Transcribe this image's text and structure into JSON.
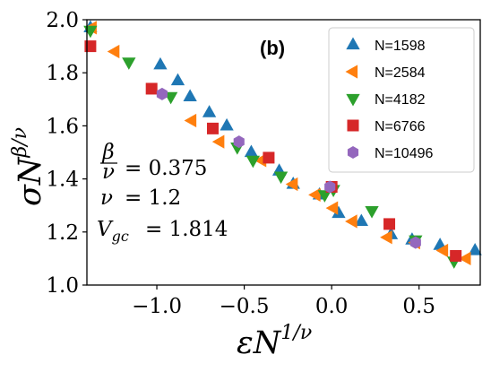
{
  "chart_data": {
    "type": "scatter",
    "panel_label": "(b)",
    "xlabel": {
      "base": "εN",
      "exp": "1/ν"
    },
    "ylabel": {
      "base": "σN",
      "exp": "β/ν"
    },
    "xlim": [
      -1.4,
      0.85
    ],
    "ylim": [
      1.0,
      2.0
    ],
    "xticks": [
      {
        "value": -1.0,
        "label": "−1.0"
      },
      {
        "value": -0.5,
        "label": "−0.5"
      },
      {
        "value": 0.0,
        "label": "0.0"
      },
      {
        "value": 0.5,
        "label": "0.5"
      }
    ],
    "yticks": [
      {
        "value": 1.0,
        "label": "1.0"
      },
      {
        "value": 1.2,
        "label": "1.2"
      },
      {
        "value": 1.4,
        "label": "1.4"
      },
      {
        "value": 1.6,
        "label": "1.6"
      },
      {
        "value": 1.8,
        "label": "1.8"
      },
      {
        "value": 2.0,
        "label": "2.0"
      }
    ],
    "grid": false,
    "legend_position": "top-right",
    "annotations": {
      "ratio_num": "β",
      "ratio_den": "ν",
      "ratio_value": "= 0.375",
      "nu_symbol": "ν",
      "nu_value": "= 1.2",
      "vgc_symbol": "V",
      "vgc_sub": "gc",
      "vgc_value": "= 1.814"
    },
    "series": [
      {
        "name": "N=1598",
        "marker": "triangle-up",
        "color": "#1f77b4",
        "points": [
          [
            -1.38,
            1.97
          ],
          [
            -0.98,
            1.83
          ],
          [
            -0.88,
            1.77
          ],
          [
            -0.81,
            1.71
          ],
          [
            -0.7,
            1.65
          ],
          [
            -0.6,
            1.6
          ],
          [
            -0.46,
            1.5
          ],
          [
            -0.3,
            1.43
          ],
          [
            -0.22,
            1.38
          ],
          [
            -0.07,
            1.34
          ],
          [
            0.04,
            1.27
          ],
          [
            0.17,
            1.24
          ],
          [
            0.34,
            1.19
          ],
          [
            0.46,
            1.17
          ],
          [
            0.62,
            1.15
          ],
          [
            0.82,
            1.13
          ]
        ]
      },
      {
        "name": "N=2584",
        "marker": "triangle-left",
        "color": "#ff7f0e",
        "points": [
          [
            -1.37,
            1.97
          ],
          [
            -1.24,
            1.88
          ],
          [
            -0.8,
            1.62
          ],
          [
            -0.64,
            1.54
          ],
          [
            -0.4,
            1.47
          ],
          [
            -0.22,
            1.38
          ],
          [
            -0.09,
            1.34
          ],
          [
            0.01,
            1.29
          ],
          [
            0.12,
            1.24
          ],
          [
            0.32,
            1.18
          ],
          [
            0.48,
            1.16
          ],
          [
            0.64,
            1.13
          ],
          [
            0.77,
            1.1
          ]
        ]
      },
      {
        "name": "N=4182",
        "marker": "triangle-down",
        "color": "#2ca02c",
        "points": [
          [
            -1.38,
            1.96
          ],
          [
            -1.16,
            1.84
          ],
          [
            -0.92,
            1.71
          ],
          [
            -0.54,
            1.52
          ],
          [
            -0.45,
            1.47
          ],
          [
            -0.29,
            1.41
          ],
          [
            -0.04,
            1.34
          ],
          [
            0.01,
            1.36
          ],
          [
            0.23,
            1.28
          ],
          [
            0.48,
            1.17
          ],
          [
            0.7,
            1.09
          ]
        ]
      },
      {
        "name": "N=6766",
        "marker": "square",
        "color": "#d62728",
        "points": [
          [
            -1.38,
            1.9
          ],
          [
            -1.03,
            1.74
          ],
          [
            -0.68,
            1.59
          ],
          [
            -0.36,
            1.48
          ],
          [
            0.0,
            1.37
          ],
          [
            0.33,
            1.23
          ],
          [
            0.71,
            1.11
          ]
        ]
      },
      {
        "name": "N=10496",
        "marker": "hexagon",
        "color": "#9467bd",
        "points": [
          [
            -0.97,
            1.72
          ],
          [
            -0.53,
            1.54
          ],
          [
            -0.01,
            1.37
          ],
          [
            0.48,
            1.16
          ]
        ]
      }
    ]
  }
}
